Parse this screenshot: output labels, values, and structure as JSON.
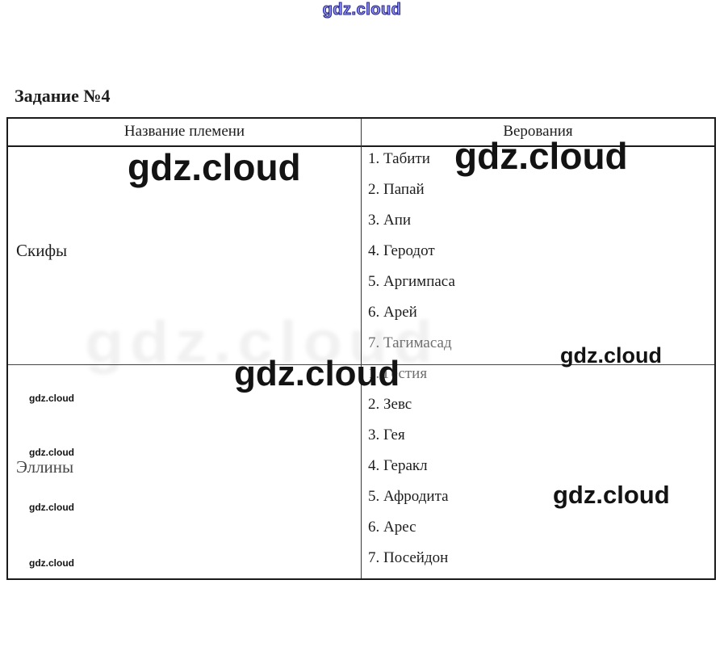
{
  "watermark": {
    "text": "gdz.cloud"
  },
  "title": "Задание №4",
  "table": {
    "headers": [
      "Название племени",
      "Верования"
    ],
    "rows": [
      {
        "tribe": "Скифы",
        "beliefs": [
          "1. Табити",
          "2. Папай",
          "3. Апи",
          "4. Геродот",
          "5. Аргимпаса",
          "6. Арей",
          "7. Тагимасад"
        ]
      },
      {
        "tribe": "Эллины",
        "beliefs": [
          "1. Гестия",
          "2. Зевс",
          "3. Гея",
          "4. Геракл",
          "5. Афродита",
          "6. Арес",
          "7. Посейдон"
        ]
      }
    ]
  }
}
